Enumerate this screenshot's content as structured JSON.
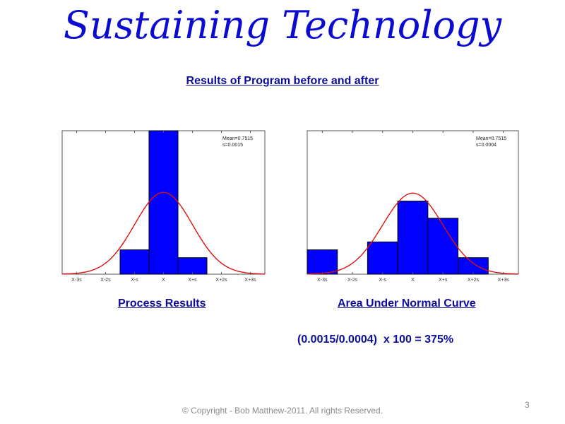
{
  "slide": {
    "title": "Sustaining Technology",
    "subtitle": "Results of Program before and after",
    "formula": "(0.0015/0.0004)  x 100 = 375%",
    "footer": "© Copyright - Bob Matthew-2011. All rights Reserved.",
    "page_number": "3"
  },
  "colors": {
    "title": "#0a0ad0",
    "caption": "#0d0d9a",
    "bar": "#0000ff",
    "curve": "#e01010"
  },
  "chart_data": [
    {
      "type": "bar",
      "title": "",
      "caption": "Process Results",
      "stats": [
        "Mean=0.7515",
        "s=0.0015"
      ],
      "tick_labels": [
        "X-3s",
        "X-2s",
        "X-s",
        "X",
        "X+s",
        "X+2s",
        "X+3s"
      ],
      "x_range": [
        -3.5,
        3.5
      ],
      "ylim": [
        0,
        1
      ],
      "bars": [
        {
          "from": -1.5,
          "to": -0.5,
          "value": 0.17
        },
        {
          "from": -0.5,
          "to": 0.5,
          "value": 1.0
        },
        {
          "from": 0.5,
          "to": 1.5,
          "value": 0.115
        }
      ],
      "curve": {
        "type": "normal",
        "mean": 0,
        "sd": 1,
        "peak": 0.57
      }
    },
    {
      "type": "bar",
      "title": "",
      "caption": "Area Under Normal Curve",
      "stats": [
        "Mean=0.7515",
        "s=0.0004"
      ],
      "tick_labels": [
        "X-3s",
        "X-2s",
        "X-s",
        "X",
        "X+s",
        "X+2s",
        "X+3s"
      ],
      "x_range": [
        -3.5,
        3.5
      ],
      "ylim": [
        0,
        1
      ],
      "bars": [
        {
          "from": -3.5,
          "to": -2.5,
          "value": 0.17
        },
        {
          "from": -1.5,
          "to": -0.5,
          "value": 0.225
        },
        {
          "from": -0.5,
          "to": 0.5,
          "value": 0.51
        },
        {
          "from": 0.5,
          "to": 1.5,
          "value": 0.39
        },
        {
          "from": 1.5,
          "to": 2.5,
          "value": 0.115
        }
      ],
      "curve": {
        "type": "normal",
        "mean": 0,
        "sd": 1,
        "peak": 0.565
      }
    }
  ]
}
